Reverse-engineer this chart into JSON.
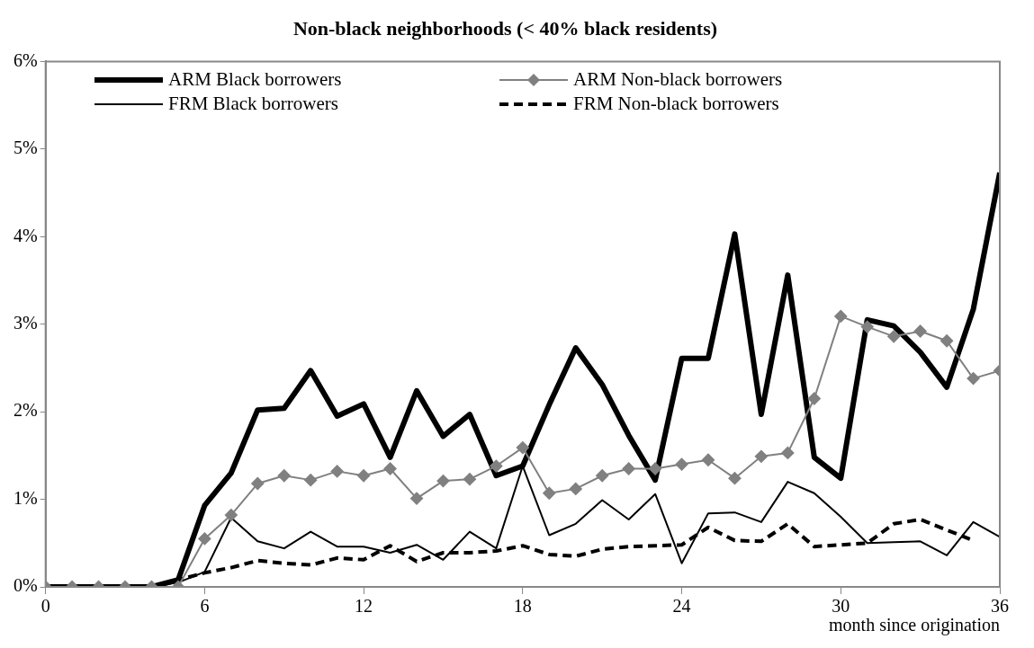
{
  "chart_data": {
    "type": "line",
    "title": "Non-black neighborhoods (< 40% black residents)",
    "xlabel": "month since origination",
    "x": [
      0,
      1,
      2,
      3,
      4,
      5,
      6,
      7,
      8,
      9,
      10,
      11,
      12,
      13,
      14,
      15,
      16,
      17,
      18,
      19,
      20,
      21,
      22,
      23,
      24,
      25,
      26,
      27,
      28,
      29,
      30,
      31,
      32,
      33,
      34,
      35,
      36
    ],
    "xlim": [
      0,
      36
    ],
    "xticks": [
      0,
      6,
      12,
      18,
      24,
      30,
      36
    ],
    "ylim": [
      0,
      6
    ],
    "yticks": [
      {
        "value": 0,
        "label": "0%"
      },
      {
        "value": 1,
        "label": "1%"
      },
      {
        "value": 2,
        "label": "2%"
      },
      {
        "value": 3,
        "label": "3%"
      },
      {
        "value": 4,
        "label": "4%"
      },
      {
        "value": 5,
        "label": "5%"
      },
      {
        "value": 6,
        "label": "6%"
      }
    ],
    "grid": false,
    "legend": "top",
    "marker": "none",
    "series": [
      {
        "name": "ARM Black borrowers",
        "color": "#000000",
        "line_style": "solid",
        "values": [
          0,
          0,
          0,
          0,
          0,
          0.08,
          0.93,
          1.3,
          2.02,
          2.04,
          2.47,
          1.95,
          2.09,
          1.48,
          2.24,
          1.72,
          1.97,
          1.27,
          1.38,
          2.08,
          2.73,
          2.31,
          1.73,
          1.22,
          2.61,
          2.61,
          4.03,
          1.97,
          3.56,
          1.48,
          1.24,
          3.05,
          2.98,
          2.68,
          2.28,
          3.17,
          4.73
        ]
      },
      {
        "name": "ARM Non-black borrowers",
        "color": "#808080",
        "marker": "diamond",
        "line_style": "solid",
        "values": [
          0,
          0,
          0,
          0,
          0,
          0,
          0.55,
          0.82,
          1.18,
          1.27,
          1.22,
          1.32,
          1.27,
          1.35,
          1.01,
          1.21,
          1.23,
          1.38,
          1.59,
          1.07,
          1.12,
          1.27,
          1.35,
          1.35,
          1.4,
          1.45,
          1.24,
          1.49,
          1.53,
          2.15,
          3.09,
          2.97,
          2.86,
          2.92,
          2.81,
          2.38,
          2.47
        ]
      },
      {
        "name": "FRM Black borrowers",
        "color": "#000000",
        "line_style": "solid",
        "values": [
          0,
          0,
          0,
          0,
          0,
          0.05,
          0.17,
          0.79,
          0.52,
          0.44,
          0.63,
          0.46,
          0.46,
          0.39,
          0.48,
          0.31,
          0.63,
          0.44,
          1.38,
          0.59,
          0.72,
          0.99,
          0.77,
          1.06,
          0.27,
          0.84,
          0.85,
          0.74,
          1.2,
          1.07,
          0.8,
          0.5,
          0.51,
          0.52,
          0.36,
          0.74,
          0.57
        ]
      },
      {
        "name": "FRM Non-black borrowers",
        "color": "#000000",
        "line_style": "dashed",
        "values": [
          0,
          0,
          0,
          0,
          0,
          0.08,
          0.16,
          0.22,
          0.3,
          0.27,
          0.25,
          0.33,
          0.31,
          0.47,
          0.29,
          0.39,
          0.39,
          0.41,
          0.47,
          0.37,
          0.35,
          0.43,
          0.46,
          0.47,
          0.48,
          0.68,
          0.53,
          0.52,
          0.72,
          0.46,
          0.48,
          0.5,
          0.72,
          0.77,
          0.65,
          0.53,
          null
        ]
      }
    ]
  }
}
